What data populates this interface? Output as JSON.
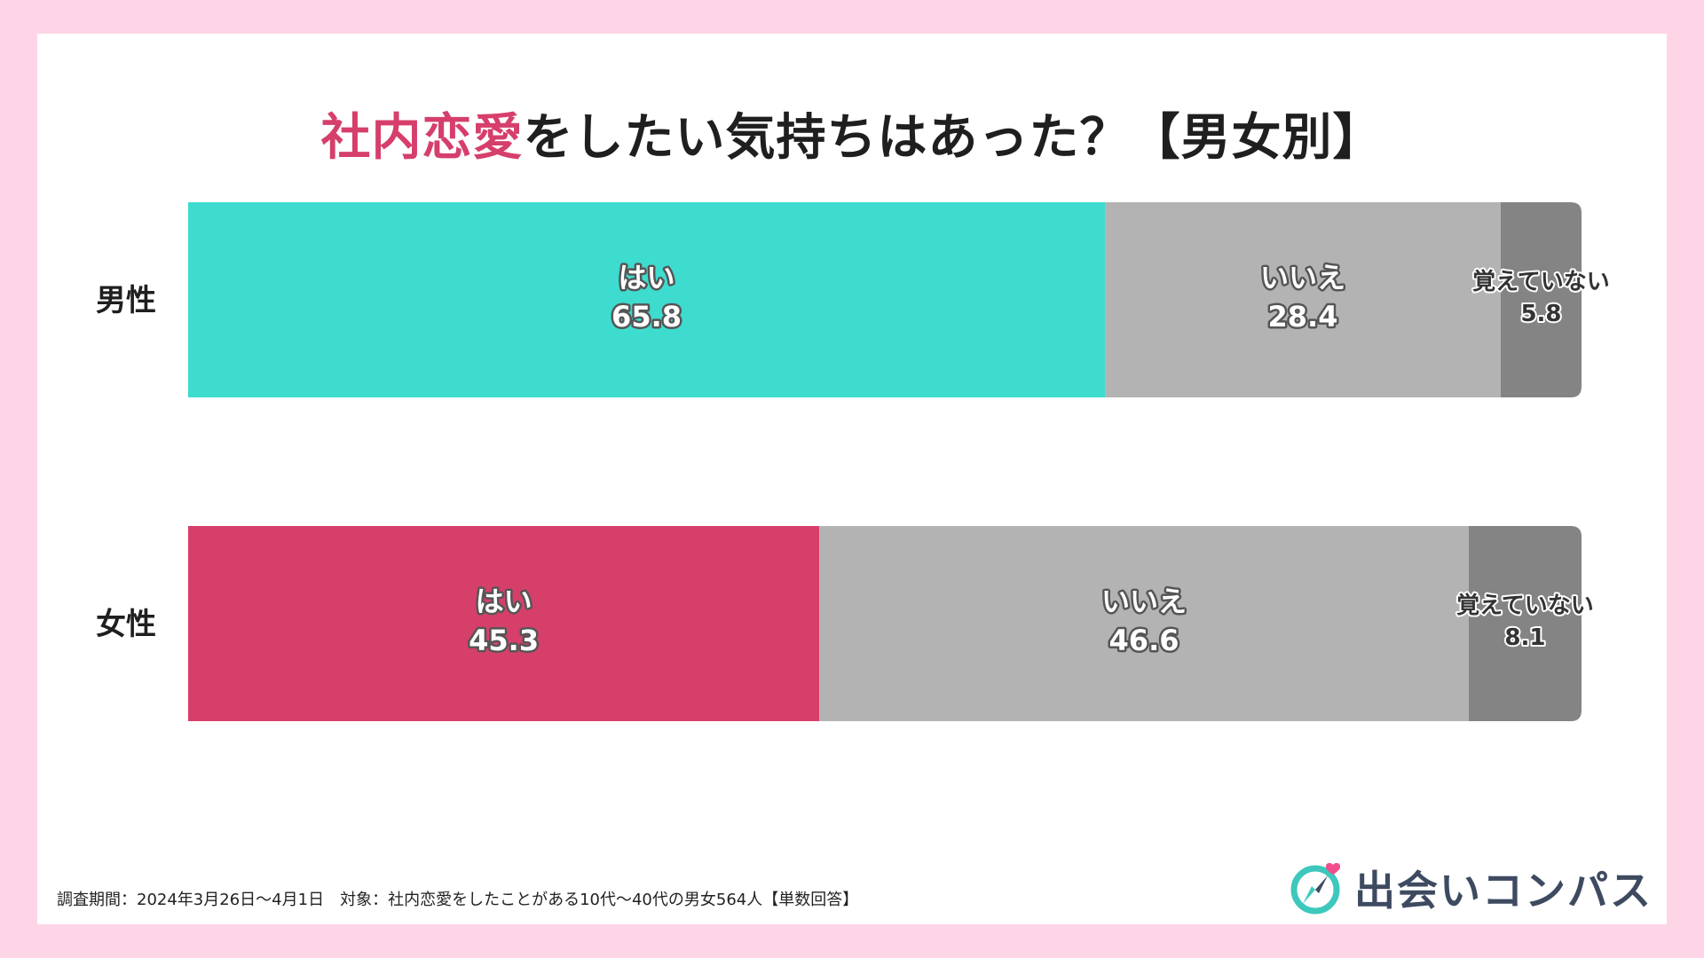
{
  "title": {
    "accent": "社内恋愛",
    "rest": "をしたい気持ちはあった？【男女別】"
  },
  "footnote": "調査期間：2024年3月26日〜4月1日　対象：社内恋愛をしたことがある10代〜40代の男女564人【単数回答】",
  "brand": {
    "name": "出会いコンパス",
    "icon": "compass-heart-icon",
    "colors": {
      "teal": "#3ec8bd",
      "heart": "#f24d8c",
      "text": "#3d4a60"
    }
  },
  "chart_data": {
    "type": "bar",
    "orientation": "horizontal",
    "stacked": true,
    "categories": [
      "男性",
      "女性"
    ],
    "series": [
      {
        "name": "はい",
        "values": [
          65.8,
          45.3
        ]
      },
      {
        "name": "いいえ",
        "values": [
          28.4,
          46.6
        ]
      },
      {
        "name": "覚えていない",
        "values": [
          5.8,
          8.1
        ]
      }
    ],
    "xlim": [
      0,
      100
    ],
    "colors": {
      "yes_male": "#3ddccf",
      "yes_female": "#d73f6b",
      "no": "#b3b3b3",
      "dont_remember": "#848484"
    },
    "grid": false,
    "legend": "none"
  }
}
